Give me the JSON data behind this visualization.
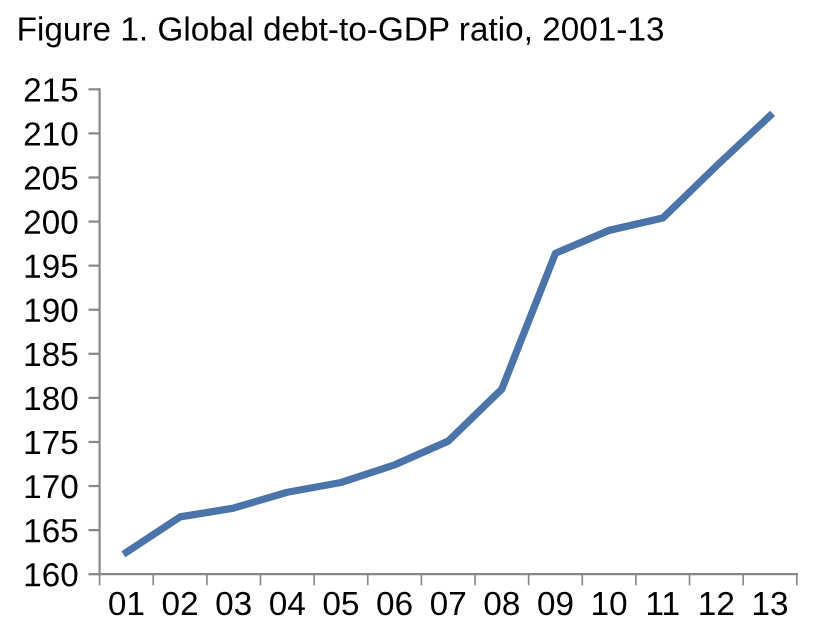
{
  "chart_data": {
    "type": "line",
    "title": "Figure 1. Global debt-to-GDP ratio, 2001-13",
    "categories": [
      "01",
      "02",
      "03",
      "04",
      "05",
      "06",
      "07",
      "08",
      "09",
      "10",
      "11",
      "12",
      "13"
    ],
    "series": [
      {
        "color": "#4a74aa",
        "values": [
          162.5,
          166.5,
          167.5,
          169.3,
          170.4,
          172.4,
          175.1,
          181.0,
          196.4,
          199.0,
          200.4,
          206.3,
          212.0
        ]
      }
    ],
    "ylim": [
      160,
      215
    ],
    "yticks": [
      160,
      165,
      170,
      175,
      180,
      185,
      190,
      195,
      200,
      205,
      210,
      215
    ],
    "grid": false,
    "marker": "none",
    "line_style": "solid"
  }
}
